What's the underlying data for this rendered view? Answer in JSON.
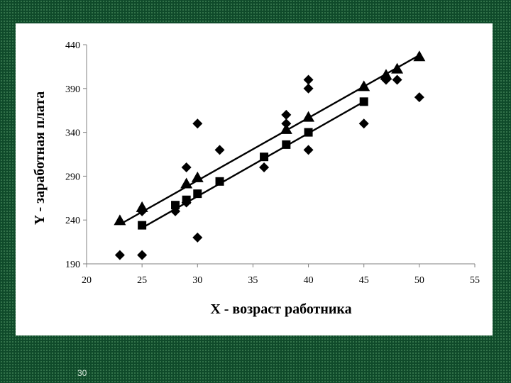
{
  "slide": {
    "page_number": "30"
  },
  "chart_data": {
    "type": "scatter",
    "xlabel": "X - возраст работника",
    "ylabel": "Y - заработная плата",
    "xlim": [
      20,
      55
    ],
    "ylim": [
      190,
      440
    ],
    "xticks": [
      20,
      25,
      30,
      35,
      40,
      45,
      50,
      55
    ],
    "yticks": [
      190,
      240,
      290,
      340,
      390,
      440
    ],
    "grid": false,
    "legend": "none",
    "series": [
      {
        "marker": "diamond",
        "points": [
          [
            23,
            200
          ],
          [
            25,
            200
          ],
          [
            25,
            250
          ],
          [
            28,
            250
          ],
          [
            29,
            300
          ],
          [
            29,
            260
          ],
          [
            30,
            350
          ],
          [
            30,
            220
          ],
          [
            32,
            320
          ],
          [
            36,
            300
          ],
          [
            38,
            360
          ],
          [
            38,
            350
          ],
          [
            40,
            400
          ],
          [
            40,
            390
          ],
          [
            40,
            320
          ],
          [
            45,
            350
          ],
          [
            47,
            400
          ],
          [
            48,
            400
          ],
          [
            50,
            380
          ]
        ]
      },
      {
        "marker": "square",
        "points": [
          [
            25,
            234
          ],
          [
            28,
            257
          ],
          [
            29,
            263
          ],
          [
            30,
            270
          ],
          [
            32,
            284
          ],
          [
            36,
            312
          ],
          [
            38,
            326
          ],
          [
            40,
            340
          ],
          [
            45,
            375
          ]
        ]
      },
      {
        "marker": "triangle",
        "points": [
          [
            23,
            239
          ],
          [
            25,
            254
          ],
          [
            29,
            281
          ],
          [
            30,
            288
          ],
          [
            38,
            343
          ],
          [
            40,
            357
          ],
          [
            45,
            392
          ],
          [
            47,
            405
          ],
          [
            48,
            412
          ],
          [
            50,
            426
          ]
        ]
      }
    ],
    "lines": [
      {
        "from": [
          23,
          235
        ],
        "to": [
          50,
          428
        ]
      },
      {
        "from": [
          25,
          231
        ],
        "to": [
          45,
          375
        ]
      }
    ],
    "colors": {
      "marks": "#000000",
      "axes": "#808080",
      "background": "#ffffff"
    }
  }
}
